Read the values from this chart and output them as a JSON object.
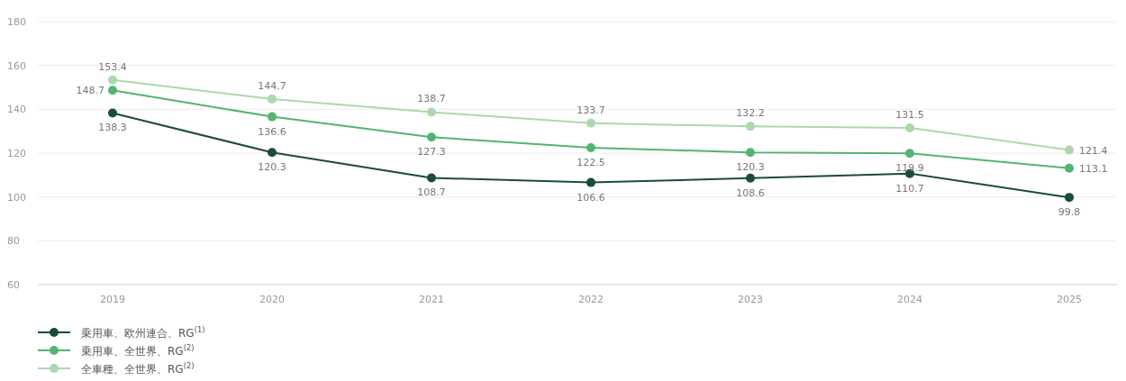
{
  "chart_data": {
    "type": "line",
    "categories": [
      "2019",
      "2020",
      "2021",
      "2022",
      "2023",
      "2024",
      "2025"
    ],
    "series": [
      {
        "name": "乗用車、欧州連合、RG$^{(1)}$",
        "color": "#1b4d36",
        "values": [
          138.3,
          120.3,
          108.7,
          106.6,
          108.6,
          110.7,
          99.8
        ]
      },
      {
        "name": "乗用車、全世界、RG$^{(2)}$",
        "color": "#52b56f",
        "values": [
          148.7,
          136.6,
          127.3,
          122.5,
          120.3,
          119.9,
          113.1
        ]
      },
      {
        "name": "全車種、全世界、RG$^{(2)}$",
        "color": "#acd8ad",
        "values": [
          153.4,
          144.7,
          138.7,
          133.7,
          132.2,
          131.5,
          121.4
        ]
      }
    ],
    "ylim": [
      60,
      180
    ],
    "yticks": [
      60,
      80,
      100,
      120,
      140,
      160,
      180
    ],
    "grid": "y",
    "legend": "bottom",
    "marker": "circle",
    "line_style": "solid",
    "data_labels": true
  }
}
